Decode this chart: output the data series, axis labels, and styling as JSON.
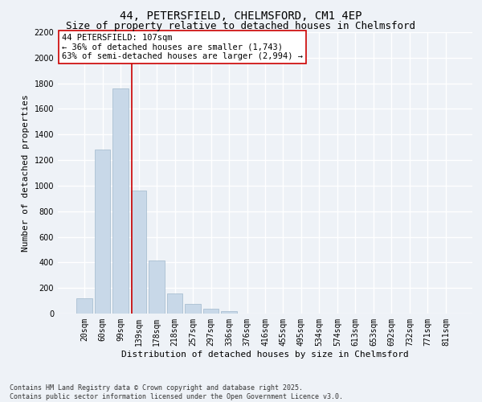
{
  "title_line1": "44, PETERSFIELD, CHELMSFORD, CM1 4EP",
  "title_line2": "Size of property relative to detached houses in Chelmsford",
  "xlabel": "Distribution of detached houses by size in Chelmsford",
  "ylabel": "Number of detached properties",
  "categories": [
    "20sqm",
    "60sqm",
    "99sqm",
    "139sqm",
    "178sqm",
    "218sqm",
    "257sqm",
    "297sqm",
    "336sqm",
    "376sqm",
    "416sqm",
    "455sqm",
    "495sqm",
    "534sqm",
    "574sqm",
    "613sqm",
    "653sqm",
    "692sqm",
    "732sqm",
    "771sqm",
    "811sqm"
  ],
  "values": [
    120,
    1280,
    1760,
    960,
    415,
    155,
    75,
    35,
    20,
    0,
    0,
    0,
    0,
    0,
    0,
    0,
    0,
    0,
    0,
    0,
    0
  ],
  "bar_color": "#c8d8e8",
  "bar_edge_color": "#a0b8cc",
  "vline_x": 2.62,
  "vline_color": "#cc0000",
  "annotation_text": "44 PETERSFIELD: 107sqm\n← 36% of detached houses are smaller (1,743)\n63% of semi-detached houses are larger (2,994) →",
  "annotation_box_color": "#ffffff",
  "annotation_box_edge": "#cc0000",
  "ylim": [
    0,
    2200
  ],
  "yticks": [
    0,
    200,
    400,
    600,
    800,
    1000,
    1200,
    1400,
    1600,
    1800,
    2000,
    2200
  ],
  "background_color": "#eef2f7",
  "grid_color": "#ffffff",
  "footnote": "Contains HM Land Registry data © Crown copyright and database right 2025.\nContains public sector information licensed under the Open Government Licence v3.0.",
  "title_fontsize": 10,
  "subtitle_fontsize": 9,
  "axis_label_fontsize": 8,
  "tick_fontsize": 7,
  "annotation_fontsize": 7.5,
  "footnote_fontsize": 6
}
